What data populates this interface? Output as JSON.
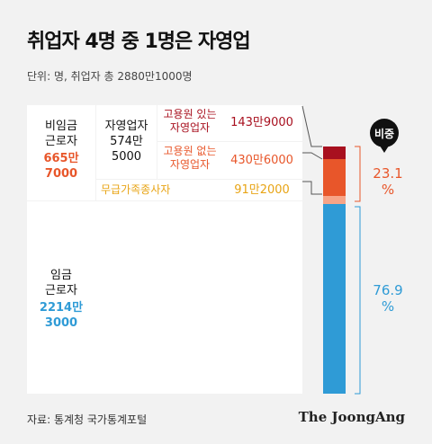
{
  "header": {
    "title": "취업자 4명 중 1명은 자영업",
    "unit": "단위: 명, 취업자 총 2880만1000명"
  },
  "labels": {
    "nonwage_name_1": "비임금",
    "nonwage_name_2": "근로자",
    "nonwage_value_1": "665만",
    "nonwage_value_2": "7000",
    "self_name": "자영업자",
    "self_value_1": "574만",
    "self_value_2": "5000",
    "employer_name_1": "고용원 있는",
    "employer_name_2": "자영업자",
    "employer_value": "143만9000",
    "own_name_1": "고용원 없는",
    "own_name_2": "자영업자",
    "own_value": "430만6000",
    "family_name": "무급가족종사자",
    "family_value": "91만2000",
    "wage_name_1": "임금",
    "wage_name_2": "근로자",
    "wage_value_1": "2214만",
    "wage_value_2": "3000"
  },
  "pin_label": "비중",
  "pct_nonwage_1": "23.1",
  "pct_nonwage_2": "%",
  "pct_wage_1": "76.9",
  "pct_wage_2": "%",
  "footer": {
    "source": "자료: 통계청 국가통계포털",
    "brand": "The JoongAng"
  },
  "colors": {
    "employer": "#a8101f",
    "own_account": "#e8562a",
    "family": "#f7a487",
    "wage": "#2f9bd6",
    "pin": "#111111"
  },
  "chart_data": {
    "type": "bar",
    "stacked": true,
    "total": 28801000,
    "categories": [
      "고용원 있는 자영업자",
      "고용원 없는 자영업자",
      "무급가족종사자",
      "임금근로자"
    ],
    "values": [
      1439000,
      4306000,
      912000,
      22143000
    ],
    "groups": [
      {
        "name": "비임금근로자",
        "value": 6657000,
        "share": 23.1
      },
      {
        "name": "임금근로자",
        "value": 22143000,
        "share": 76.9
      }
    ]
  }
}
